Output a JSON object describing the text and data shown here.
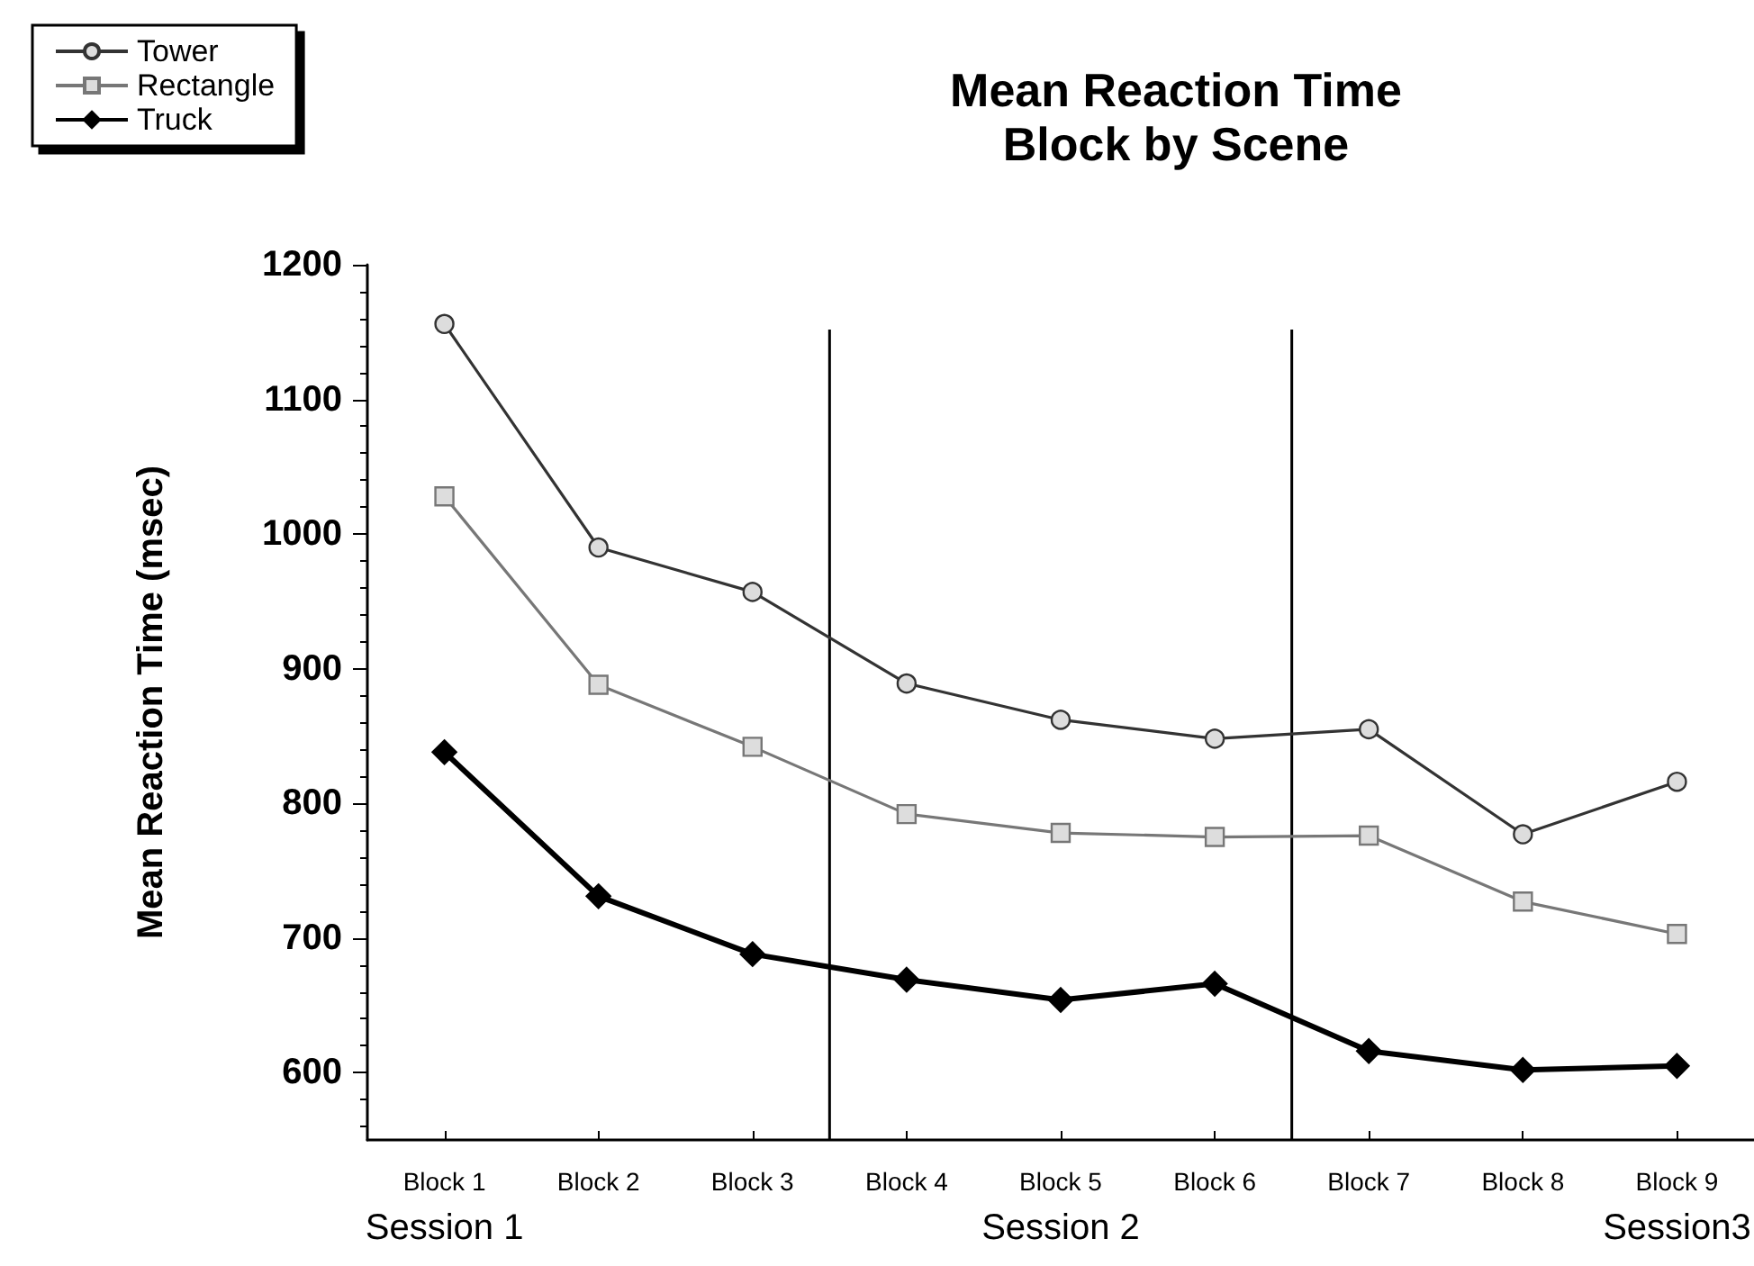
{
  "chart_data": {
    "type": "line",
    "title": "Mean Reaction Time\nBlock by Scene",
    "ylabel": "Mean Reaction Time (msec)",
    "categories": [
      "Block 1",
      "Block 2",
      "Block 3",
      "Block 4",
      "Block 5",
      "Block 6",
      "Block 7",
      "Block 8",
      "Block 9"
    ],
    "ylim": [
      550,
      1200
    ],
    "yticks": [
      600,
      700,
      800,
      900,
      1000,
      1100,
      1200
    ],
    "series": [
      {
        "name": "Tower",
        "color": "#333333",
        "marker": "circle",
        "values": [
          1156,
          990,
          957,
          889,
          862,
          848,
          855,
          777,
          816
        ]
      },
      {
        "name": "Rectangle",
        "color": "#777777",
        "marker": "square",
        "values": [
          1028,
          888,
          842,
          792,
          778,
          775,
          776,
          727,
          703
        ]
      },
      {
        "name": "Truck",
        "color": "#000000",
        "marker": "diamond",
        "values": [
          838,
          731,
          688,
          669,
          654,
          666,
          616,
          602,
          605
        ]
      }
    ],
    "annotations": [
      "Session 1",
      "Session 2",
      "Session3"
    ],
    "legend": "top left",
    "grid": false
  }
}
